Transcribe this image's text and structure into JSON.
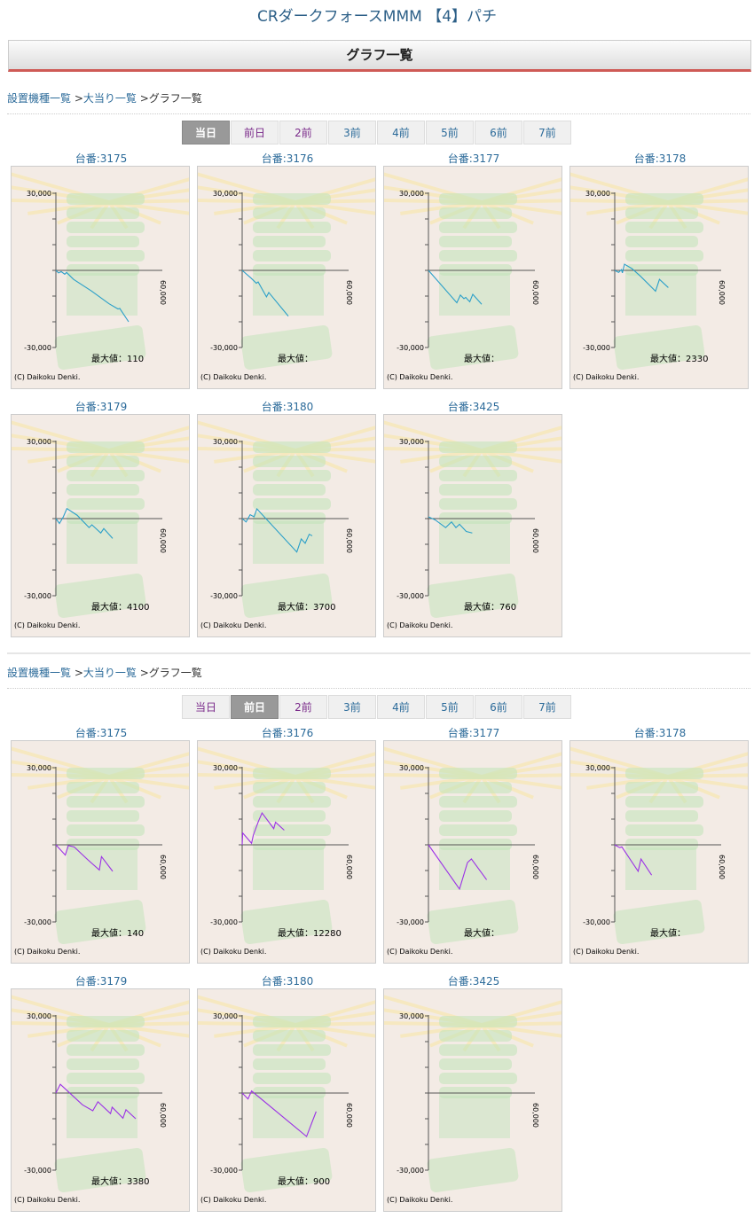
{
  "page_title": "CRダークフォースMMM 【4】パチ",
  "header": "グラフ一覧",
  "breadcrumb": {
    "item1": "設置機種一覧",
    "sep": " >",
    "item2": "大当り一覧",
    "current": " >グラフ一覧"
  },
  "tabs": [
    "当日",
    "前日",
    "2前",
    "3前",
    "4前",
    "5前",
    "6前",
    "7前"
  ],
  "colors": {
    "day0_line": "#2a9fc9",
    "day1_line": "#9b30e6",
    "header_rule": "#cf5a55"
  },
  "axis": {
    "y_top": "30,000",
    "y_bottom": "-30,000",
    "x_end": "60,000",
    "xlim": [
      0,
      60000
    ],
    "ylim": [
      -30000,
      30000
    ]
  },
  "copyright": "(C) Daikoku Denki.",
  "sections": [
    {
      "active_tab": 0,
      "charts": [
        {
          "label": "台番:3175",
          "max": "最大値：110",
          "points": [
            [
              0,
              0
            ],
            [
              1500,
              -1000
            ],
            [
              3000,
              -500
            ],
            [
              5000,
              -1500
            ],
            [
              6000,
              -800
            ],
            [
              10000,
              -3500
            ],
            [
              20000,
              -8000
            ],
            [
              30000,
              -13000
            ],
            [
              35000,
              -15000
            ],
            [
              36000,
              -14800
            ],
            [
              41000,
              -20000
            ]
          ]
        },
        {
          "label": "台番:3176",
          "max": "最大値：",
          "points": [
            [
              0,
              0
            ],
            [
              5000,
              -3000
            ],
            [
              8000,
              -5000
            ],
            [
              9000,
              -4500
            ],
            [
              13700,
              -10300
            ],
            [
              15000,
              -8600
            ],
            [
              26000,
              -17800
            ]
          ]
        },
        {
          "label": "台番:3177",
          "max": "最大値：",
          "points": [
            [
              0,
              0
            ],
            [
              16000,
              -12600
            ],
            [
              18000,
              -9600
            ],
            [
              20000,
              -11000
            ],
            [
              21000,
              -10500
            ],
            [
              22000,
              -11300
            ],
            [
              23300,
              -12200
            ],
            [
              25000,
              -9300
            ],
            [
              30000,
              -13200
            ]
          ]
        },
        {
          "label": "台番:3178",
          "max": "最大値：2330",
          "points": [
            [
              0,
              0
            ],
            [
              2200,
              -800
            ],
            [
              3800,
              300
            ],
            [
              4300,
              -1000
            ],
            [
              5500,
              2400
            ],
            [
              9700,
              700
            ],
            [
              14700,
              -2400
            ],
            [
              23000,
              -8100
            ],
            [
              25200,
              -3500
            ],
            [
              30200,
              -6700
            ]
          ]
        },
        {
          "label": "台番:3179",
          "max": "最大値：4100",
          "points": [
            [
              0,
              0
            ],
            [
              2000,
              -1900
            ],
            [
              4200,
              700
            ],
            [
              6200,
              3900
            ],
            [
              12000,
              1300
            ],
            [
              18700,
              -3500
            ],
            [
              20300,
              -2400
            ],
            [
              25300,
              -5600
            ],
            [
              27000,
              -3900
            ],
            [
              32000,
              -7700
            ]
          ]
        },
        {
          "label": "台番:3180",
          "max": "最大値：3700",
          "points": [
            [
              0,
              0
            ],
            [
              2200,
              -1300
            ],
            [
              4500,
              1500
            ],
            [
              6700,
              700
            ],
            [
              8300,
              3800
            ],
            [
              30800,
              -13000
            ],
            [
              33300,
              -7900
            ],
            [
              35500,
              -9600
            ],
            [
              37800,
              -6100
            ],
            [
              39500,
              -6700
            ]
          ]
        },
        {
          "label": "台番:3425",
          "max": "最大値：760",
          "points": [
            [
              0,
              700
            ],
            [
              3800,
              -500
            ],
            [
              9700,
              -3500
            ],
            [
              13000,
              -1300
            ],
            [
              15500,
              -3500
            ],
            [
              17500,
              -2200
            ],
            [
              21300,
              -5000
            ],
            [
              24700,
              -5600
            ]
          ]
        }
      ]
    },
    {
      "active_tab": 1,
      "charts": [
        {
          "label": "台番:3175",
          "max": "最大値：140",
          "points": [
            [
              0,
              0
            ],
            [
              5300,
              -4000
            ],
            [
              7000,
              -300
            ],
            [
              10300,
              -800
            ],
            [
              17800,
              -5700
            ],
            [
              24500,
              -9800
            ],
            [
              25700,
              -4600
            ],
            [
              32000,
              -10300
            ]
          ]
        },
        {
          "label": "台番:3176",
          "max": "最大値：12280",
          "points": [
            [
              0,
              0
            ],
            [
              300,
              4600
            ],
            [
              5300,
              600
            ],
            [
              6300,
              3800
            ],
            [
              9200,
              9200
            ],
            [
              11200,
              12400
            ],
            [
              17800,
              6300
            ],
            [
              18800,
              8800
            ],
            [
              23700,
              5700
            ]
          ]
        },
        {
          "label": "台番:3177",
          "max": "最大値：",
          "points": [
            [
              0,
              0
            ],
            [
              17500,
              -17200
            ],
            [
              22000,
              -6900
            ],
            [
              24200,
              -5500
            ],
            [
              32800,
              -13600
            ]
          ]
        },
        {
          "label": "台番:3178",
          "max": "最大値：",
          "points": [
            [
              0,
              0
            ],
            [
              2800,
              -1100
            ],
            [
              4000,
              -800
            ],
            [
              13200,
              -10300
            ],
            [
              14800,
              -5500
            ],
            [
              20800,
              -11800
            ]
          ]
        },
        {
          "label": "台番:3179",
          "max": "最大値：3380",
          "points": [
            [
              0,
              0
            ],
            [
              2500,
              3400
            ],
            [
              4200,
              2300
            ],
            [
              15000,
              -4600
            ],
            [
              20800,
              -6900
            ],
            [
              23700,
              -3400
            ],
            [
              30800,
              -8000
            ],
            [
              31700,
              -5500
            ],
            [
              37800,
              -9800
            ],
            [
              39500,
              -6500
            ],
            [
              45000,
              -10000
            ]
          ]
        },
        {
          "label": "台番:3180",
          "max": "最大値：900",
          "points": [
            [
              0,
              0
            ],
            [
              3300,
              -2300
            ],
            [
              5300,
              800
            ],
            [
              36300,
              -16900
            ],
            [
              41700,
              -7200
            ]
          ]
        },
        {
          "label": "台番:3425",
          "max": "",
          "points": []
        }
      ]
    }
  ]
}
